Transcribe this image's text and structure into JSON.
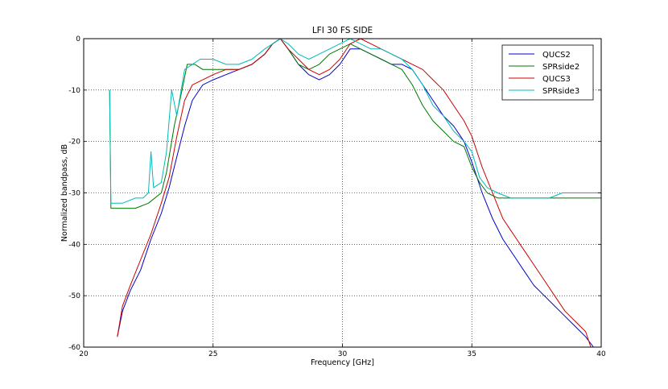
{
  "chart_data": {
    "type": "line",
    "title": "LFI 30 FS SIDE",
    "xlabel": "Frequency [GHz]",
    "ylabel": "Normalized bandpass, dB",
    "xlim": [
      20,
      40
    ],
    "ylim": [
      -60,
      0
    ],
    "xticks": [
      20,
      25,
      30,
      35,
      40
    ],
    "yticks": [
      0,
      -10,
      -20,
      -30,
      -40,
      -50,
      -60
    ],
    "grid": true,
    "grid_style": "dotted",
    "legend_position": "top-right",
    "series": [
      {
        "name": "QUCS2",
        "color": "#0000cc",
        "x": [
          21.3,
          21.5,
          21.8,
          22.2,
          22.6,
          23.0,
          23.3,
          23.6,
          23.9,
          24.2,
          24.6,
          25.0,
          25.5,
          26.0,
          26.5,
          27.0,
          27.3,
          27.6,
          27.9,
          28.3,
          28.7,
          29.1,
          29.5,
          29.9,
          30.3,
          30.7,
          31.1,
          31.5,
          31.9,
          32.3,
          32.7,
          33.1,
          33.5,
          33.9,
          34.3,
          34.7,
          35.0,
          35.4,
          35.8,
          36.2,
          36.6,
          37.0,
          37.4,
          37.8,
          38.2,
          38.6,
          39.0,
          39.4,
          39.7
        ],
        "y": [
          -58,
          -53,
          -49,
          -45,
          -39,
          -34,
          -29,
          -23,
          -17,
          -12,
          -9,
          -8,
          -7,
          -6,
          -5,
          -3,
          -1,
          0,
          -2,
          -5,
          -7,
          -8,
          -7,
          -5,
          -2,
          -2,
          -3,
          -4,
          -5,
          -5,
          -6,
          -9,
          -12,
          -15,
          -17,
          -20,
          -24,
          -30,
          -35,
          -39,
          -42,
          -45,
          -48,
          -50,
          -52,
          -54,
          -56,
          -58,
          -60
        ]
      },
      {
        "name": "SPRside2",
        "color": "#007700",
        "x": [
          21.0,
          21.05,
          21.5,
          22.0,
          22.5,
          23.0,
          23.2,
          23.5,
          23.8,
          24.0,
          24.3,
          24.6,
          25.0,
          25.5,
          26.0,
          26.5,
          27.0,
          27.3,
          27.6,
          27.9,
          28.3,
          28.7,
          29.1,
          29.5,
          29.9,
          30.3,
          30.7,
          31.1,
          31.5,
          31.9,
          32.3,
          32.7,
          33.1,
          33.5,
          33.9,
          34.3,
          34.7,
          35.0,
          35.3,
          35.6,
          36.0,
          36.5,
          37.0,
          37.5,
          38.0,
          38.5,
          39.0,
          39.5,
          40.0
        ],
        "y": [
          -10,
          -33,
          -33,
          -33,
          -32,
          -30,
          -26,
          -17,
          -10,
          -5,
          -5,
          -6,
          -6,
          -6,
          -6,
          -5,
          -3,
          -1,
          0,
          -2,
          -5,
          -6,
          -5,
          -3,
          -2,
          -1,
          -2,
          -3,
          -4,
          -5,
          -6,
          -9,
          -13,
          -16,
          -18,
          -20,
          -21,
          -25,
          -28,
          -30,
          -31,
          -31,
          -31,
          -31,
          -31,
          -31,
          -31,
          -31,
          -31
        ]
      },
      {
        "name": "QUCS3",
        "color": "#cc0000",
        "x": [
          21.3,
          21.5,
          21.8,
          22.2,
          22.6,
          23.0,
          23.3,
          23.6,
          23.9,
          24.2,
          24.6,
          25.0,
          25.5,
          26.0,
          26.5,
          27.0,
          27.3,
          27.6,
          27.9,
          28.3,
          28.7,
          29.1,
          29.5,
          29.9,
          30.3,
          30.7,
          31.1,
          31.5,
          31.9,
          32.3,
          32.7,
          33.1,
          33.5,
          33.9,
          34.3,
          34.7,
          35.0,
          35.4,
          35.8,
          36.2,
          36.6,
          37.0,
          37.4,
          37.8,
          38.2,
          38.6,
          39.0,
          39.4,
          39.6
        ],
        "y": [
          -58,
          -52,
          -48,
          -43,
          -38,
          -32,
          -27,
          -19,
          -12,
          -9,
          -8,
          -7,
          -6,
          -6,
          -5,
          -3,
          -1,
          0,
          -2,
          -4,
          -6,
          -7,
          -6,
          -4,
          -1,
          0,
          -1,
          -2,
          -3,
          -4,
          -5,
          -6,
          -8,
          -10,
          -13,
          -16,
          -19,
          -25,
          -30,
          -35,
          -38,
          -41,
          -44,
          -47,
          -50,
          -53,
          -55,
          -57,
          -60
        ]
      },
      {
        "name": "SPRside3",
        "color": "#00bbbb",
        "x": [
          21.0,
          21.05,
          21.5,
          22.0,
          22.3,
          22.5,
          22.6,
          22.7,
          23.0,
          23.2,
          23.4,
          23.6,
          23.9,
          24.2,
          24.5,
          25.0,
          25.5,
          26.0,
          26.5,
          27.0,
          27.3,
          27.6,
          27.9,
          28.3,
          28.7,
          29.1,
          29.5,
          29.9,
          30.3,
          30.7,
          31.1,
          31.5,
          31.9,
          32.3,
          32.7,
          33.1,
          33.5,
          33.9,
          34.3,
          34.7,
          35.0,
          35.3,
          35.6,
          36.0,
          36.5,
          37.0,
          37.5,
          38.0,
          38.5,
          39.0,
          39.5,
          40.0
        ],
        "y": [
          -10,
          -32,
          -32,
          -31,
          -31,
          -30,
          -22,
          -29,
          -28,
          -22,
          -10,
          -15,
          -6,
          -5,
          -4,
          -4,
          -5,
          -5,
          -4,
          -2,
          -1,
          0,
          -1,
          -3,
          -4,
          -3,
          -2,
          -1,
          0,
          -1,
          -2,
          -2,
          -3,
          -4,
          -6,
          -9,
          -13,
          -15,
          -18,
          -20,
          -22,
          -27,
          -29,
          -30,
          -31,
          -31,
          -31,
          -31,
          -30,
          -30,
          -30,
          -30
        ]
      }
    ]
  }
}
